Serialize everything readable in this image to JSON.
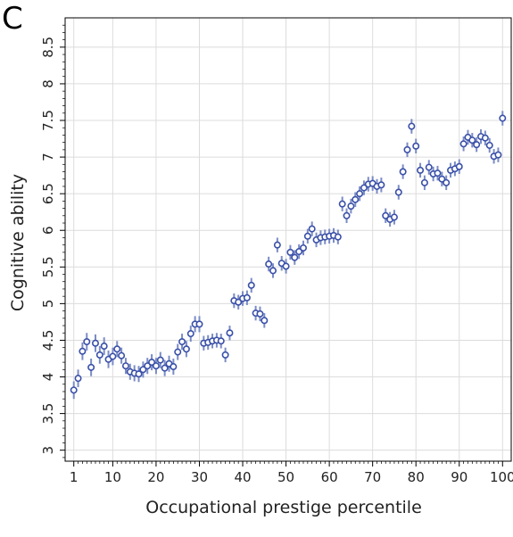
{
  "chart_data": {
    "type": "scatter",
    "panel_label": "C",
    "title": "",
    "xlabel": "Occupational prestige percentile",
    "ylabel": "Cognitive ability",
    "xlim": [
      -1,
      102
    ],
    "ylim": [
      2.85,
      8.9
    ],
    "xticks": [
      "1",
      "10",
      "20",
      "30",
      "40",
      "50",
      "60",
      "70",
      "80",
      "90",
      "100"
    ],
    "xtick_values": [
      1,
      10,
      20,
      30,
      40,
      50,
      60,
      70,
      80,
      90,
      100
    ],
    "yticks": [
      "3",
      "3.5",
      "4",
      "4.5",
      "5",
      "5.5",
      "6",
      "6.5",
      "7",
      "7.5",
      "8",
      "8.5"
    ],
    "ytick_values": [
      3,
      3.5,
      4,
      4.5,
      5,
      5.5,
      6,
      6.5,
      7,
      7.5,
      8,
      8.5
    ],
    "grid": true,
    "marker_color": "#3a50a8",
    "error_bar_color": "#7b8cc6",
    "grid_color": "#dcdcdc",
    "x": [
      1,
      2,
      3,
      4,
      5,
      6,
      7,
      8,
      9,
      10,
      11,
      12,
      13,
      14,
      15,
      16,
      17,
      18,
      19,
      20,
      21,
      22,
      23,
      24,
      25,
      26,
      27,
      28,
      29,
      30,
      31,
      32,
      33,
      34,
      35,
      36,
      37,
      38,
      39,
      40,
      41,
      42,
      43,
      44,
      45,
      46,
      47,
      48,
      49,
      50,
      51,
      52,
      53,
      54,
      55,
      56,
      57,
      58,
      59,
      60,
      61,
      62,
      63,
      64,
      65,
      66,
      67,
      68,
      69,
      70,
      71,
      72,
      73,
      74,
      75,
      76,
      77,
      78,
      79,
      80,
      81,
      82,
      83,
      84,
      85,
      86,
      87,
      88,
      89,
      90,
      91,
      92,
      93,
      94,
      95,
      96,
      97,
      98,
      99,
      100
    ],
    "y": [
      3.82,
      3.98,
      4.35,
      4.48,
      4.13,
      4.46,
      4.3,
      4.42,
      4.24,
      4.28,
      4.38,
      4.29,
      4.15,
      4.07,
      4.05,
      4.04,
      4.1,
      4.15,
      4.2,
      4.15,
      4.23,
      4.12,
      4.18,
      4.14,
      4.34,
      4.48,
      4.38,
      4.59,
      4.72,
      4.72,
      4.46,
      4.47,
      4.49,
      4.5,
      4.49,
      4.3,
      4.6,
      5.04,
      5.02,
      5.07,
      5.08,
      5.25,
      4.87,
      4.86,
      4.77,
      5.54,
      5.45,
      5.8,
      5.55,
      5.51,
      5.7,
      5.63,
      5.71,
      5.76,
      5.92,
      6.02,
      5.87,
      5.9,
      5.91,
      5.92,
      5.93,
      5.91,
      6.36,
      6.2,
      6.33,
      6.42,
      6.5,
      6.58,
      6.63,
      6.64,
      6.6,
      6.62,
      6.2,
      6.15,
      6.18,
      6.52,
      6.8,
      7.1,
      7.42,
      7.15,
      6.82,
      6.65,
      6.86,
      6.77,
      6.78,
      6.7,
      6.65,
      6.82,
      6.84,
      6.87,
      7.18,
      7.27,
      7.23,
      7.17,
      7.28,
      7.26,
      7.16,
      7.01,
      7.03,
      7.53
    ],
    "err": [
      0.12,
      0.12,
      0.12,
      0.12,
      0.12,
      0.12,
      0.12,
      0.12,
      0.12,
      0.12,
      0.11,
      0.11,
      0.11,
      0.11,
      0.11,
      0.11,
      0.11,
      0.11,
      0.11,
      0.11,
      0.11,
      0.11,
      0.11,
      0.11,
      0.11,
      0.11,
      0.11,
      0.11,
      0.11,
      0.11,
      0.1,
      0.1,
      0.1,
      0.1,
      0.1,
      0.1,
      0.1,
      0.1,
      0.1,
      0.1,
      0.1,
      0.1,
      0.1,
      0.1,
      0.1,
      0.1,
      0.1,
      0.1,
      0.1,
      0.1,
      0.1,
      0.1,
      0.1,
      0.1,
      0.1,
      0.1,
      0.1,
      0.1,
      0.1,
      0.1,
      0.1,
      0.1,
      0.1,
      0.1,
      0.1,
      0.1,
      0.1,
      0.1,
      0.1,
      0.1,
      0.1,
      0.1,
      0.1,
      0.1,
      0.1,
      0.1,
      0.1,
      0.1,
      0.1,
      0.1,
      0.1,
      0.1,
      0.1,
      0.1,
      0.1,
      0.1,
      0.1,
      0.1,
      0.1,
      0.1,
      0.1,
      0.1,
      0.1,
      0.1,
      0.1,
      0.1,
      0.1,
      0.1,
      0.1,
      0.1
    ]
  }
}
